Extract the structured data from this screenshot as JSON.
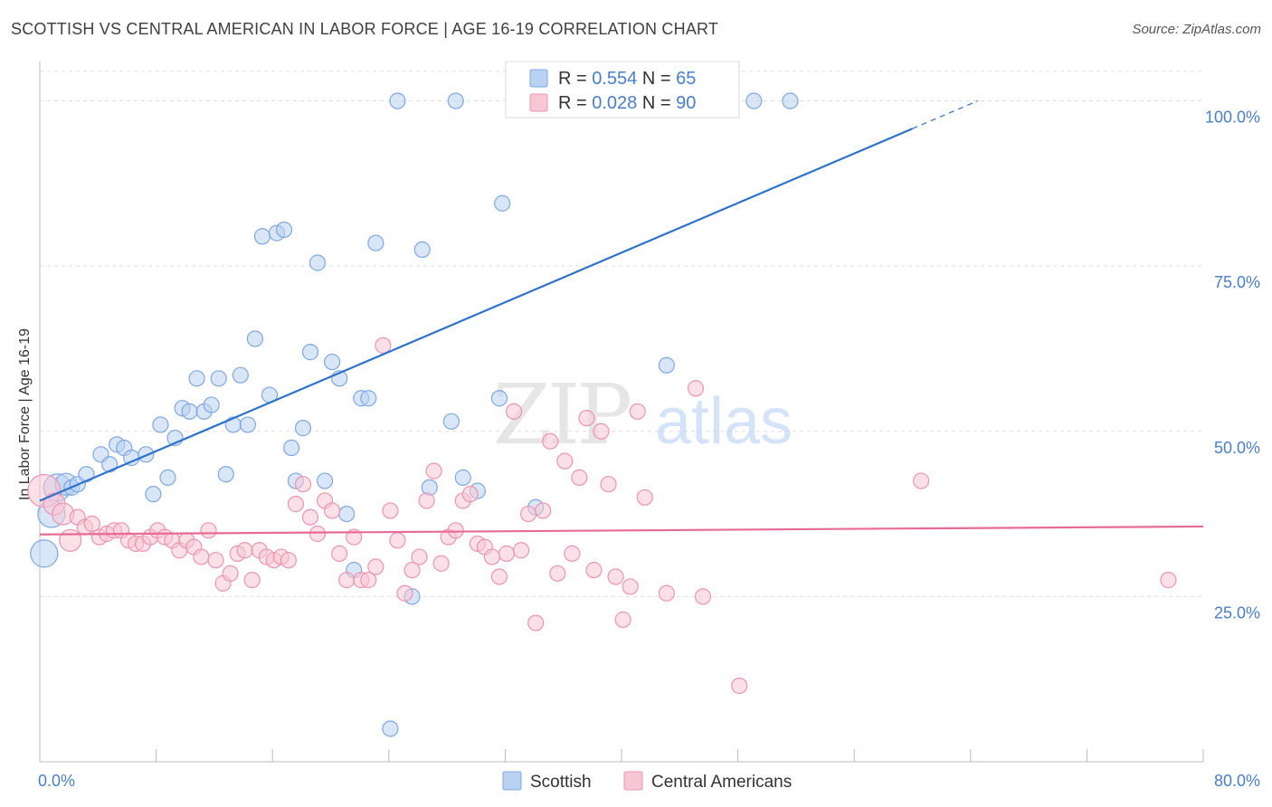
{
  "title": "SCOTTISH VS CENTRAL AMERICAN IN LABOR FORCE | AGE 16-19 CORRELATION CHART",
  "source": "Source: ZipAtlas.com",
  "watermark": {
    "zip": "ZIP",
    "atlas": "atlas"
  },
  "colors": {
    "scottish_fill": "#b9d2f2",
    "scottish_stroke": "#7fa8e0",
    "scottish_line": "#2e72c9",
    "central_fill": "#f8c7d6",
    "central_stroke": "#eb94b1",
    "central_line": "#e86a96",
    "tick_label": "#4a7fc7",
    "grid": "#dddddd"
  },
  "legend": {
    "rows": [
      {
        "r_label": "R = ",
        "r_value": "0.554",
        "n_label": "N = ",
        "n_value": "65",
        "series": "scottish"
      },
      {
        "r_label": "R = ",
        "r_value": "0.028",
        "n_label": "N = ",
        "n_value": "90",
        "series": "central"
      }
    ]
  },
  "chart_data": {
    "type": "scatter",
    "title": "SCOTTISH VS CENTRAL AMERICAN IN LABOR FORCE | AGE 16-19 CORRELATION CHART",
    "xlabel": "",
    "ylabel": "In Labor Force | Age 16-19",
    "xlim": [
      0,
      80
    ],
    "ylim": [
      0,
      105
    ],
    "x_tick_labels": [
      {
        "value": 0,
        "label": "0.0%"
      },
      {
        "value": 80,
        "label": "80.0%"
      }
    ],
    "y_tick_labels": [
      {
        "value": 25,
        "label": "25.0%"
      },
      {
        "value": 50,
        "label": "50.0%"
      },
      {
        "value": 75,
        "label": "75.0%"
      },
      {
        "value": 100,
        "label": "100.0%"
      }
    ],
    "y_grid": [
      25,
      50,
      75,
      100
    ],
    "legend_position": "bottom",
    "series": [
      {
        "name": "Scottish",
        "key": "scottish",
        "trend": {
          "x0": 0,
          "y0": 39.5,
          "x1": 60,
          "y1": 95.8,
          "dash_to_x": 64.5,
          "dash_to_y": 100
        },
        "points": [
          [
            0.3,
            31.5,
            3
          ],
          [
            0.8,
            37.5,
            3
          ],
          [
            1.2,
            41.5,
            3
          ],
          [
            1.8,
            42,
            2
          ],
          [
            2.2,
            41.5,
            1
          ],
          [
            2.6,
            42,
            1
          ],
          [
            3.2,
            43.5,
            1
          ],
          [
            4.2,
            46.5,
            1
          ],
          [
            4.8,
            45,
            1
          ],
          [
            5.3,
            48,
            1
          ],
          [
            5.8,
            47.5,
            1
          ],
          [
            6.3,
            46,
            1
          ],
          [
            7.3,
            46.5,
            1
          ],
          [
            7.8,
            40.5,
            1
          ],
          [
            8.3,
            51,
            1
          ],
          [
            8.8,
            43,
            1
          ],
          [
            9.3,
            49,
            1
          ],
          [
            9.8,
            53.5,
            1
          ],
          [
            10.3,
            53,
            1
          ],
          [
            10.8,
            58,
            1
          ],
          [
            11.3,
            53,
            1
          ],
          [
            11.8,
            54,
            1
          ],
          [
            12.3,
            58,
            1
          ],
          [
            12.8,
            43.5,
            1
          ],
          [
            13.3,
            51,
            1
          ],
          [
            13.8,
            58.5,
            1
          ],
          [
            14.3,
            51,
            1
          ],
          [
            14.8,
            64,
            1
          ],
          [
            15.3,
            79.5,
            1
          ],
          [
            15.8,
            55.5,
            1
          ],
          [
            16.3,
            80,
            1
          ],
          [
            16.8,
            80.5,
            1
          ],
          [
            17.3,
            47.5,
            1
          ],
          [
            17.6,
            42.5,
            1
          ],
          [
            18.1,
            50.5,
            1
          ],
          [
            18.6,
            62,
            1
          ],
          [
            19.1,
            75.5,
            1
          ],
          [
            19.6,
            42.5,
            1
          ],
          [
            20.1,
            60.5,
            1
          ],
          [
            20.6,
            58,
            1
          ],
          [
            21.1,
            37.5,
            1
          ],
          [
            21.6,
            29,
            1
          ],
          [
            22.1,
            55,
            1
          ],
          [
            22.6,
            55,
            1
          ],
          [
            23.1,
            78.5,
            1
          ],
          [
            24.1,
            5,
            1
          ],
          [
            24.6,
            100,
            1
          ],
          [
            25.6,
            25,
            1
          ],
          [
            26.3,
            77.5,
            1
          ],
          [
            26.8,
            41.5,
            1
          ],
          [
            28.3,
            51.5,
            1
          ],
          [
            28.6,
            100,
            1
          ],
          [
            29.1,
            43,
            1
          ],
          [
            30.1,
            41,
            1
          ],
          [
            31.6,
            55,
            1
          ],
          [
            31.8,
            84.5,
            1
          ],
          [
            34.1,
            38.5,
            1
          ],
          [
            35.6,
            100,
            1
          ],
          [
            43.1,
            60,
            1
          ],
          [
            49.1,
            100,
            1
          ],
          [
            51.6,
            100,
            1
          ]
        ]
      },
      {
        "name": "Central Americans",
        "key": "central",
        "trend": {
          "x0": 0,
          "y0": 34.4,
          "x1": 80,
          "y1": 35.6
        },
        "points": [
          [
            0.3,
            41,
            4
          ],
          [
            1.0,
            39,
            2
          ],
          [
            1.6,
            37.5,
            2
          ],
          [
            2.1,
            33.5,
            2
          ],
          [
            2.6,
            37,
            1
          ],
          [
            3.1,
            35.5,
            1
          ],
          [
            3.6,
            36,
            1
          ],
          [
            4.1,
            34,
            1
          ],
          [
            4.6,
            34.5,
            1
          ],
          [
            5.1,
            35,
            1
          ],
          [
            5.6,
            35,
            1
          ],
          [
            6.1,
            33.5,
            1
          ],
          [
            6.6,
            33,
            1
          ],
          [
            7.1,
            33,
            1
          ],
          [
            7.6,
            34,
            1
          ],
          [
            8.1,
            35,
            1
          ],
          [
            8.6,
            34,
            1
          ],
          [
            9.1,
            33.5,
            1
          ],
          [
            9.6,
            32,
            1
          ],
          [
            10.1,
            33.5,
            1
          ],
          [
            10.6,
            32.5,
            1
          ],
          [
            11.1,
            31,
            1
          ],
          [
            11.6,
            35,
            1
          ],
          [
            12.1,
            30.5,
            1
          ],
          [
            12.6,
            27,
            1
          ],
          [
            13.1,
            28.5,
            1
          ],
          [
            13.6,
            31.5,
            1
          ],
          [
            14.1,
            32,
            1
          ],
          [
            14.6,
            27.5,
            1
          ],
          [
            15.1,
            32,
            1
          ],
          [
            15.6,
            31,
            1
          ],
          [
            16.1,
            30.5,
            1
          ],
          [
            16.6,
            31,
            1
          ],
          [
            17.1,
            30.5,
            1
          ],
          [
            17.6,
            39,
            1
          ],
          [
            18.1,
            42,
            1
          ],
          [
            18.6,
            37,
            1
          ],
          [
            19.1,
            34.5,
            1
          ],
          [
            19.6,
            39.5,
            1
          ],
          [
            20.1,
            38,
            1
          ],
          [
            20.6,
            31.5,
            1
          ],
          [
            21.1,
            27.5,
            1
          ],
          [
            21.6,
            34,
            1
          ],
          [
            22.1,
            27.5,
            1
          ],
          [
            22.6,
            27.5,
            1
          ],
          [
            23.1,
            29.5,
            1
          ],
          [
            23.6,
            63,
            1
          ],
          [
            24.1,
            38,
            1
          ],
          [
            24.6,
            33.5,
            1
          ],
          [
            25.1,
            25.5,
            1
          ],
          [
            25.6,
            29,
            1
          ],
          [
            26.1,
            31,
            1
          ],
          [
            26.6,
            39.5,
            1
          ],
          [
            27.1,
            44,
            1
          ],
          [
            27.6,
            30,
            1
          ],
          [
            28.1,
            34,
            1
          ],
          [
            28.6,
            35,
            1
          ],
          [
            29.1,
            39.5,
            1
          ],
          [
            29.6,
            40.5,
            1
          ],
          [
            30.1,
            33,
            1
          ],
          [
            30.6,
            32.5,
            1
          ],
          [
            31.1,
            31,
            1
          ],
          [
            31.6,
            28,
            1
          ],
          [
            32.1,
            31.5,
            1
          ],
          [
            32.6,
            53,
            1
          ],
          [
            33.1,
            32,
            1
          ],
          [
            33.6,
            37.5,
            1
          ],
          [
            34.1,
            21,
            1
          ],
          [
            34.6,
            38,
            1
          ],
          [
            35.1,
            48.5,
            1
          ],
          [
            35.6,
            28.5,
            1
          ],
          [
            36.1,
            45.5,
            1
          ],
          [
            36.6,
            31.5,
            1
          ],
          [
            37.1,
            43,
            1
          ],
          [
            37.6,
            52,
            1
          ],
          [
            38.1,
            29,
            1
          ],
          [
            38.6,
            50,
            1
          ],
          [
            39.1,
            42,
            1
          ],
          [
            39.6,
            28,
            1
          ],
          [
            40.1,
            21.5,
            1
          ],
          [
            40.6,
            26.5,
            1
          ],
          [
            41.1,
            53,
            1
          ],
          [
            41.6,
            40,
            1
          ],
          [
            43.1,
            25.5,
            1
          ],
          [
            45.1,
            56.5,
            1
          ],
          [
            45.6,
            25,
            1
          ],
          [
            48.1,
            11.5,
            1
          ],
          [
            60.6,
            42.5,
            1
          ],
          [
            77.6,
            27.5,
            1
          ]
        ]
      }
    ],
    "legend": [
      "Scottish",
      "Central Americans"
    ]
  }
}
